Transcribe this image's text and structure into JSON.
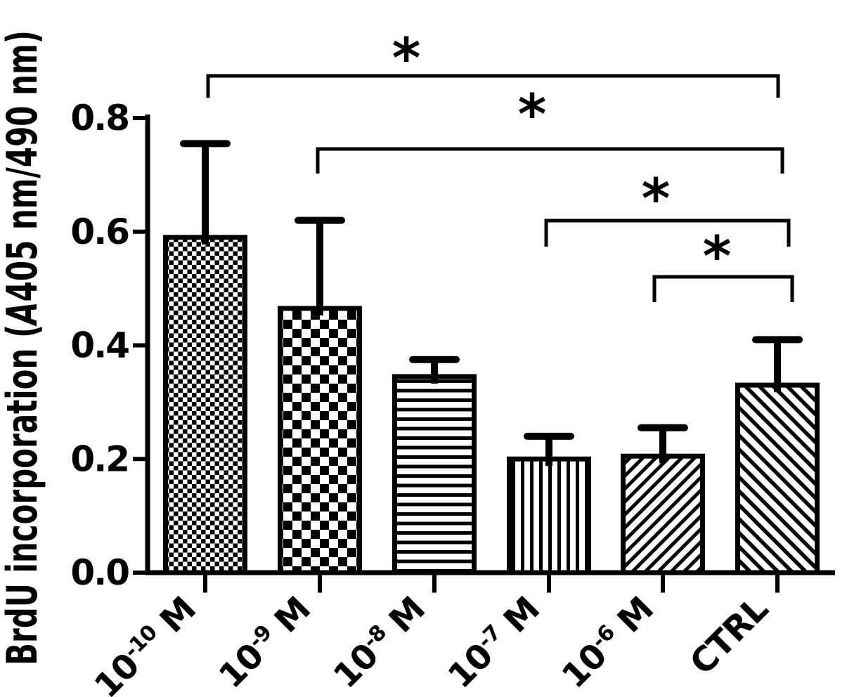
{
  "page": {
    "background": "#ffffff",
    "ink": "#000000"
  },
  "chart_data": {
    "type": "bar",
    "title": "",
    "xlabel": "",
    "ylabel": "BrdU incorporation (A405 nm/490 nm)",
    "ylabel_parts": {
      "prefix": "BrdU incorporation (",
      "italic": "A",
      "suffix": "405 nm/490 nm)"
    },
    "categories": [
      "10^-10 M",
      "10^-9 M",
      "10^-8 M",
      "10^-7 M",
      "10^-6 M",
      "CTRL"
    ],
    "category_parts": [
      {
        "base": "10",
        "sup": "-10",
        "tail": " M"
      },
      {
        "base": "10",
        "sup": "-9",
        "tail": " M"
      },
      {
        "base": "10",
        "sup": "-8",
        "tail": " M"
      },
      {
        "base": "10",
        "sup": "-7",
        "tail": " M"
      },
      {
        "base": "10",
        "sup": "-6",
        "tail": " M"
      },
      {
        "base": "CTRL",
        "sup": "",
        "tail": ""
      }
    ],
    "values": [
      0.59,
      0.465,
      0.345,
      0.2,
      0.205,
      0.33
    ],
    "error_plus": [
      0.165,
      0.155,
      0.03,
      0.04,
      0.05,
      0.08
    ],
    "bar_patterns": [
      "checker-fine",
      "checker-coarse",
      "horizontal-lines",
      "vertical-lines",
      "diagonal-up",
      "diagonal-down"
    ],
    "bar_fill_ink": "#000000",
    "bar_background": "#ffffff",
    "ylim": [
      0.0,
      0.8
    ],
    "yticks": [
      "0.0",
      "0.2",
      "0.4",
      "0.6",
      "0.8"
    ],
    "grid": false,
    "legend": null,
    "significance_brackets": [
      {
        "from": "10^-10 M",
        "to": "CTRL",
        "label": "*"
      },
      {
        "from": "10^-9 M",
        "to": "CTRL",
        "label": "*"
      },
      {
        "from": "10^-7 M",
        "to": "CTRL",
        "label": "*"
      },
      {
        "from": "10^-6 M",
        "to": "CTRL",
        "label": "*"
      }
    ]
  }
}
